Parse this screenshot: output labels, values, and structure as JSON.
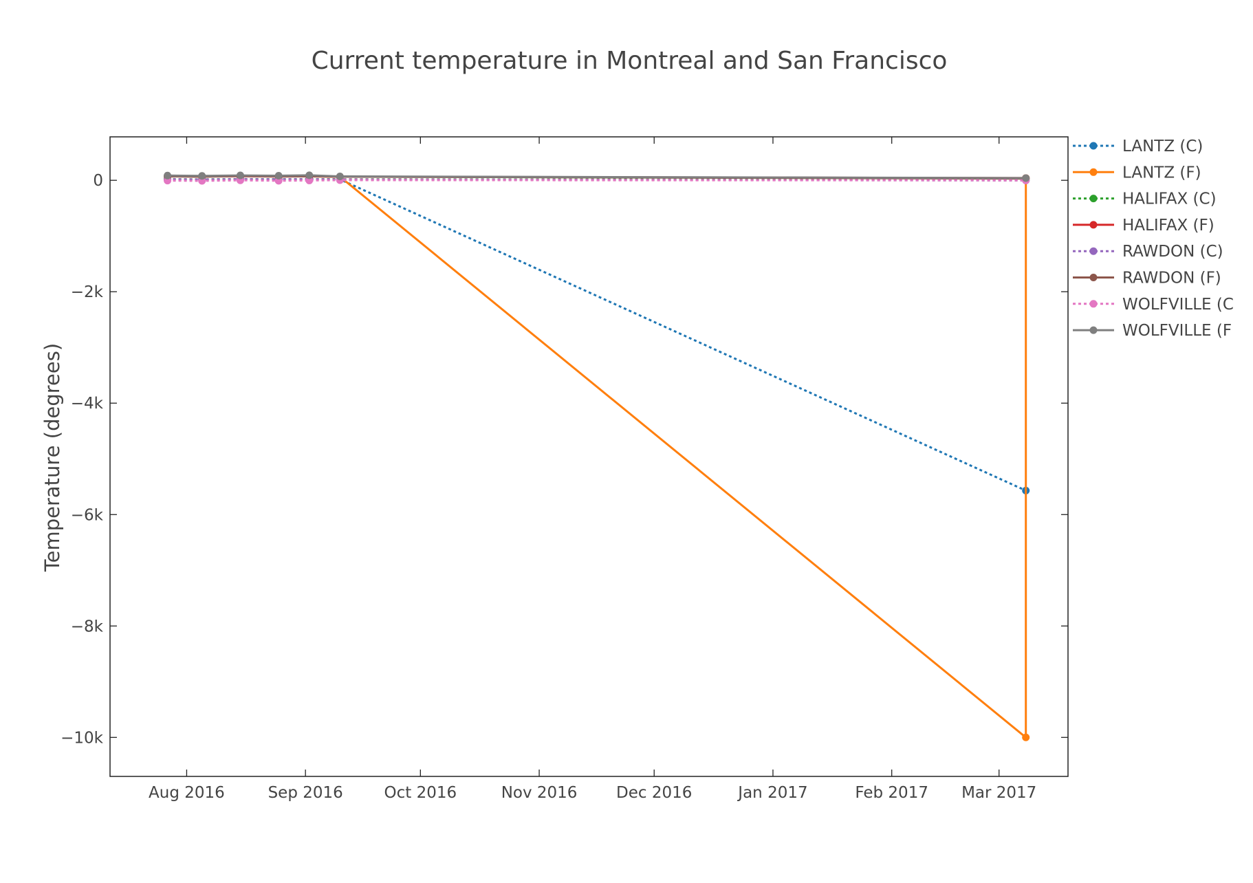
{
  "chart_data": {
    "type": "line",
    "title": "Current temperature in Montreal and San Francisco",
    "xlabel": "",
    "ylabel": "Temperature (degrees)",
    "x_axis": {
      "type": "date",
      "range": [
        "2016-07-12",
        "2017-03-19"
      ],
      "ticks": [
        {
          "value": "2016-08-01",
          "label": "Aug 2016"
        },
        {
          "value": "2016-09-01",
          "label": "Sep 2016"
        },
        {
          "value": "2016-10-01",
          "label": "Oct 2016"
        },
        {
          "value": "2016-11-01",
          "label": "Nov 2016"
        },
        {
          "value": "2016-12-01",
          "label": "Dec 2016"
        },
        {
          "value": "2017-01-01",
          "label": "Jan 2017"
        },
        {
          "value": "2017-02-01",
          "label": "Feb 2017"
        },
        {
          "value": "2017-03-01",
          "label": "Mar 2017"
        }
      ]
    },
    "y_axis": {
      "range": [
        -10700,
        780
      ],
      "ticks": [
        {
          "value": 0,
          "label": "0"
        },
        {
          "value": -2000,
          "label": "−2k"
        },
        {
          "value": -4000,
          "label": "−4k"
        },
        {
          "value": -6000,
          "label": "−6k"
        },
        {
          "value": -8000,
          "label": "−8k"
        },
        {
          "value": -10000,
          "label": "−10k"
        }
      ]
    },
    "grid": false,
    "legend_position": "right",
    "series": [
      {
        "name": "LANTZ (C)",
        "color": "#1f77b4",
        "dash": "dot",
        "x": [
          "2016-07-27",
          "2016-08-05",
          "2016-08-15",
          "2016-08-25",
          "2016-09-02",
          "2016-09-10",
          "2017-03-08"
        ],
        "y": [
          20,
          15,
          22,
          18,
          21,
          17,
          -5570
        ]
      },
      {
        "name": "LANTZ (F)",
        "color": "#ff7f0e",
        "dash": "solid",
        "x": [
          "2016-07-27",
          "2016-08-05",
          "2016-08-15",
          "2016-08-25",
          "2016-09-02",
          "2016-09-10",
          "2017-03-08",
          "2017-03-08"
        ],
        "y": [
          75,
          68,
          80,
          72,
          70,
          65,
          -10000,
          40
        ]
      },
      {
        "name": "HALIFAX (C)",
        "color": "#2ca02c",
        "dash": "dot",
        "x": [
          "2016-07-27",
          "2016-08-05",
          "2016-08-15",
          "2016-08-25",
          "2016-09-02",
          "2016-09-10",
          "2017-03-08"
        ],
        "y": [
          19,
          16,
          21,
          17,
          20,
          18,
          5
        ]
      },
      {
        "name": "HALIFAX (F)",
        "color": "#d62728",
        "dash": "solid",
        "x": [
          "2016-07-27",
          "2016-08-05",
          "2016-08-15",
          "2016-08-25",
          "2016-09-02",
          "2016-09-10",
          "2017-03-08"
        ],
        "y": [
          70,
          66,
          74,
          68,
          72,
          64,
          40
        ]
      },
      {
        "name": "RAWDON (C)",
        "color": "#9467bd",
        "dash": "dot",
        "x": [
          "2016-07-27",
          "2016-08-05",
          "2016-08-15",
          "2016-08-25",
          "2016-09-02",
          "2016-09-10",
          "2017-03-08"
        ],
        "y": [
          18,
          14,
          20,
          16,
          19,
          15,
          -2
        ]
      },
      {
        "name": "RAWDON (F)",
        "color": "#8c564b",
        "dash": "solid",
        "x": [
          "2016-07-27",
          "2016-08-05",
          "2016-08-15",
          "2016-08-25",
          "2016-09-02",
          "2016-09-10",
          "2017-03-08"
        ],
        "y": [
          72,
          65,
          78,
          70,
          74,
          66,
          30
        ]
      },
      {
        "name": "WOLFVILLE (C",
        "color": "#e377c2",
        "dash": "dot",
        "x": [
          "2016-07-27",
          "2016-08-05",
          "2016-08-15",
          "2016-08-25",
          "2016-09-02",
          "2016-09-10",
          "2017-03-08"
        ],
        "y": [
          -5,
          -10,
          0,
          -8,
          -3,
          2,
          0
        ]
      },
      {
        "name": "WOLFVILLE (F",
        "color": "#7f7f7f",
        "dash": "solid",
        "x": [
          "2016-07-27",
          "2016-08-05",
          "2016-08-15",
          "2016-08-25",
          "2016-09-02",
          "2016-09-10",
          "2017-03-08"
        ],
        "y": [
          85,
          80,
          88,
          82,
          90,
          70,
          40
        ]
      }
    ]
  }
}
